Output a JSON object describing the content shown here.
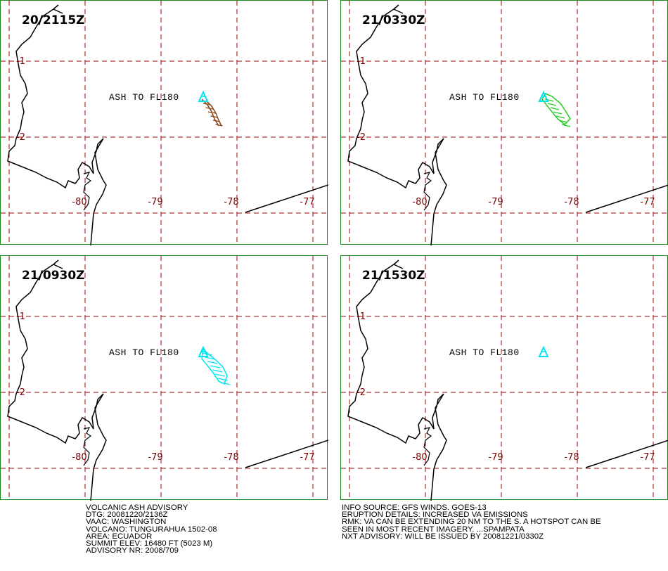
{
  "panels": [
    {
      "time": "20/2115Z",
      "ash_label": "ASH TO FL180",
      "ash_color": "#8b4513",
      "ash_shape": "small"
    },
    {
      "time": "21/0330Z",
      "ash_label": "ASH TO FL180",
      "ash_color": "#22cc22",
      "ash_shape": "medium"
    },
    {
      "time": "21/0930Z",
      "ash_label": "ASH TO FL180",
      "ash_color": "#00e5ee",
      "ash_shape": "large"
    },
    {
      "time": "21/1530Z",
      "ash_label": "ASH TO FL180",
      "ash_color": "",
      "ash_shape": "none"
    }
  ],
  "map": {
    "lon_labels": [
      "-80",
      "-79",
      "-78",
      "-77"
    ],
    "lat_labels": [
      "-1",
      "-2"
    ],
    "volcano_color": "#00e5ee",
    "coast_color": "#000000",
    "grid_color": "#a00000"
  },
  "advisory_left": [
    "VOLCANIC ASH ADVISORY",
    "DTG: 20081220/2136Z",
    "VAAC: WASHINGTON",
    "VOLCANO: TUNGURAHUA 1502-08",
    "AREA: ECUADOR",
    "SUMMIT ELEV: 16480 FT (5023 M)",
    "ADVISORY NR: 2008/709"
  ],
  "advisory_right": [
    "INFO SOURCE: GFS WINDS. GOES-13",
    "ERUPTION DETAILS: INCREASED VA EMISSIONS",
    "RMK: VA CAN BE EXTENDING 20 NM TO THE S. A HOTSPOT CAN BE",
    "SEEN IN MOST RECENT IMAGERY.  ...SPAMPATA",
    "NXT ADVISORY: WILL BE ISSUED BY 20081221/0330Z"
  ]
}
